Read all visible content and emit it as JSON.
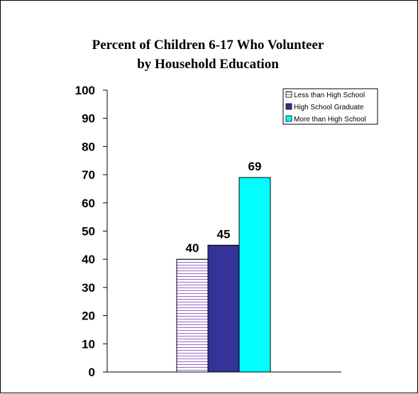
{
  "chart_data": {
    "type": "bar",
    "title_lines": [
      "Percent of Children 6-17 Who Volunteer",
      "by Household Education"
    ],
    "xlabel": "",
    "ylabel": "",
    "ylim": [
      0,
      100
    ],
    "y_ticks": [
      0,
      10,
      20,
      30,
      40,
      50,
      60,
      70,
      80,
      90,
      100
    ],
    "legend_position": "top-right",
    "grid": false,
    "categories": [
      ""
    ],
    "series": [
      {
        "name": "Less than High School",
        "values": [
          40
        ],
        "color": "#ffffff",
        "pattern": "horizontal-lines",
        "pattern_color": "#9966cc"
      },
      {
        "name": "High School Graduate",
        "values": [
          45
        ],
        "color": "#333399"
      },
      {
        "name": "More than High School",
        "values": [
          69
        ],
        "color": "#00ffff"
      }
    ]
  }
}
